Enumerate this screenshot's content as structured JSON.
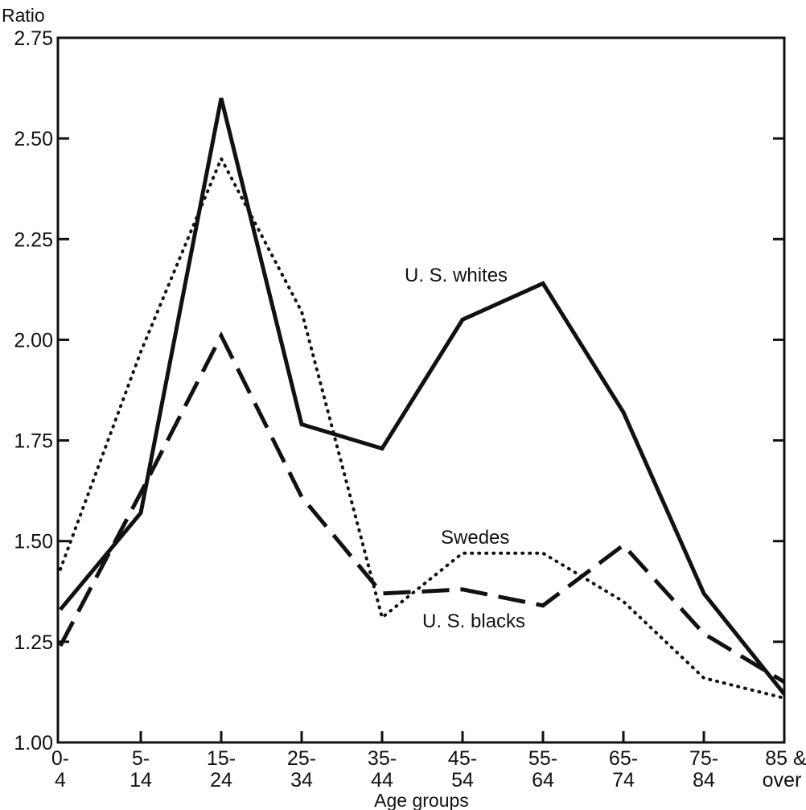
{
  "chart_data": {
    "type": "line",
    "title": "",
    "ylabel": "Ratio",
    "xlabel": "Age groups",
    "ylim": [
      1.0,
      2.75
    ],
    "yticks": [
      1.0,
      1.25,
      1.5,
      1.75,
      2.0,
      2.25,
      2.5,
      2.75
    ],
    "ytick_labels": [
      "1.00",
      "1.25",
      "1.50",
      "1.75",
      "2.00",
      "2.25",
      "2.50",
      "2.75"
    ],
    "categories": [
      [
        "0-",
        "4"
      ],
      [
        "5-",
        "14"
      ],
      [
        "15-",
        "24"
      ],
      [
        "25-",
        "34"
      ],
      [
        "35-",
        "44"
      ],
      [
        "45-",
        "54"
      ],
      [
        "55-",
        "64"
      ],
      [
        "65-",
        "74"
      ],
      [
        "75-",
        "84"
      ],
      [
        "85 &",
        "over"
      ]
    ],
    "grid": false,
    "legend": "none (series labeled inline)",
    "series": [
      {
        "name": "U. S. whites",
        "style": "solid",
        "values": [
          1.33,
          1.57,
          2.6,
          1.79,
          1.73,
          2.05,
          2.14,
          1.82,
          1.37,
          1.12
        ]
      },
      {
        "name": "Swedes",
        "style": "dotted",
        "values": [
          1.43,
          1.97,
          2.45,
          2.07,
          1.31,
          1.47,
          1.47,
          1.35,
          1.16,
          1.11
        ]
      },
      {
        "name": "U. S. blacks",
        "style": "dashed",
        "values": [
          1.24,
          1.62,
          2.01,
          1.61,
          1.37,
          1.38,
          1.34,
          1.49,
          1.27,
          1.15
        ]
      }
    ]
  }
}
